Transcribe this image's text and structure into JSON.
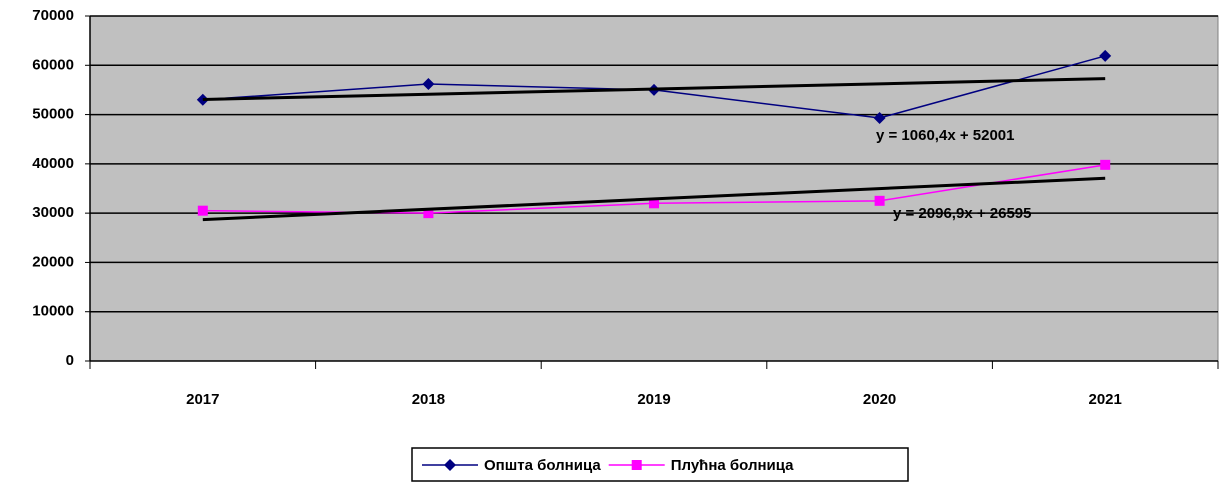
{
  "chart_data": {
    "type": "line",
    "categories": [
      "2017",
      "2018",
      "2019",
      "2020",
      "2021"
    ],
    "series": [
      {
        "name": "Општа болница",
        "color": "#000080",
        "marker": "diamond",
        "values": [
          53000,
          56200,
          55000,
          49300,
          61900
        ]
      },
      {
        "name": "Плућна болница",
        "color": "#ff00ff",
        "marker": "square",
        "values": [
          30500,
          30000,
          32000,
          32500,
          39800
        ]
      }
    ],
    "trendlines": [
      {
        "label": "y = 1060,4x + 52001",
        "slope": 1060.4,
        "intercept": 52001,
        "color": "#000000"
      },
      {
        "label": "y = 2096,9x + 26595",
        "slope": 2096.9,
        "intercept": 26595,
        "color": "#000000"
      }
    ],
    "ylim": [
      0,
      70000
    ],
    "yticks": [
      0,
      10000,
      20000,
      30000,
      40000,
      50000,
      60000,
      70000
    ],
    "grid": true,
    "legend": "bottom",
    "plot_background": "#c0c0c0"
  }
}
